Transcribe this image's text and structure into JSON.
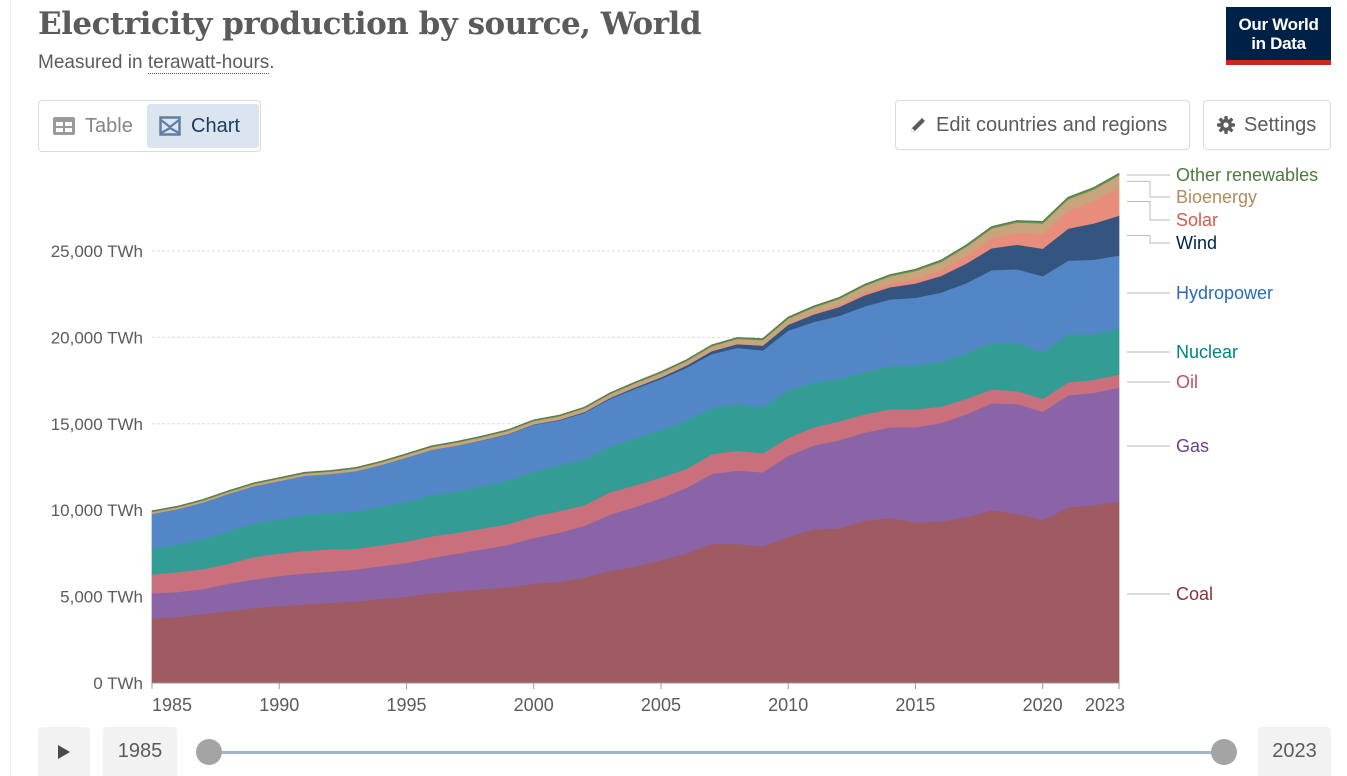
{
  "header": {
    "title": "Electricity production by source, World",
    "subtitle_prefix": "Measured in ",
    "subtitle_link": "terawatt-hours",
    "subtitle_suffix": ".",
    "logo_line1": "Our World",
    "logo_line2": "in Data"
  },
  "tabs": [
    {
      "label": "Table",
      "icon": "table-icon",
      "active": false
    },
    {
      "label": "Chart",
      "icon": "chart-icon",
      "active": true
    }
  ],
  "toolbar": {
    "edit_label": "Edit countries and regions",
    "edit_icon": "pencil-icon",
    "settings_label": "Settings",
    "settings_icon": "gear-icon"
  },
  "timeline": {
    "play_icon": "play-icon",
    "start_year": "1985",
    "end_year": "2023",
    "range_start_fraction": 0,
    "range_end_fraction": 1
  },
  "colors": {
    "brand_navy": "#002147",
    "brand_red": "#ce261e",
    "active_tab": "#dbe5f0",
    "slider_track": "#a2b6cc"
  },
  "chart_data": {
    "type": "area",
    "stacked": true,
    "title": "Electricity production by source, World",
    "subtitle": "Measured in terawatt-hours.",
    "xlabel": "",
    "ylabel": "",
    "unit": "TWh",
    "ylim": [
      0,
      29500
    ],
    "xlim": [
      1985,
      2023
    ],
    "grid": "horizontal-dashed",
    "legend_position": "right (inline labels)",
    "x_ticks": [
      "1985",
      "1990",
      "1995",
      "2000",
      "2005",
      "2010",
      "2015",
      "2020",
      "2023"
    ],
    "x_tick_values": [
      1985,
      1990,
      1995,
      2000,
      2005,
      2010,
      2015,
      2020,
      2023
    ],
    "y_ticks": [
      "0 TWh",
      "5,000 TWh",
      "10,000 TWh",
      "15,000 TWh",
      "20,000 TWh",
      "25,000 TWh"
    ],
    "y_tick_values": [
      0,
      5000,
      10000,
      15000,
      20000,
      25000
    ],
    "x": [
      1985,
      1986,
      1987,
      1988,
      1989,
      1990,
      1991,
      1992,
      1993,
      1994,
      1995,
      1996,
      1997,
      1998,
      1999,
      2000,
      2001,
      2002,
      2003,
      2004,
      2005,
      2006,
      2007,
      2008,
      2009,
      2010,
      2011,
      2012,
      2013,
      2014,
      2015,
      2016,
      2017,
      2018,
      2019,
      2020,
      2021,
      2022,
      2023
    ],
    "series": [
      {
        "name": "Coal",
        "color": "#a05a62",
        "label_color": "#883039",
        "values": [
          3750,
          3820,
          4000,
          4150,
          4350,
          4450,
          4550,
          4650,
          4720,
          4870,
          5000,
          5200,
          5300,
          5450,
          5550,
          5750,
          5850,
          6100,
          6500,
          6750,
          7100,
          7500,
          8050,
          8050,
          7900,
          8450,
          8900,
          8950,
          9400,
          9550,
          9300,
          9350,
          9600,
          10000,
          9800,
          9450,
          10150,
          10300,
          10500
        ]
      },
      {
        "name": "Gas",
        "color": "#8a64a6",
        "label_color": "#6d3e91",
        "values": [
          1450,
          1450,
          1450,
          1600,
          1650,
          1750,
          1800,
          1800,
          1850,
          1900,
          1950,
          2050,
          2200,
          2300,
          2450,
          2650,
          2850,
          3000,
          3250,
          3450,
          3600,
          3800,
          4050,
          4250,
          4300,
          4700,
          4850,
          5100,
          5100,
          5250,
          5500,
          5700,
          5950,
          6200,
          6350,
          6250,
          6500,
          6500,
          6600
        ]
      },
      {
        "name": "Oil",
        "color": "#c9707c",
        "label_color": "#c15065",
        "values": [
          1100,
          1150,
          1150,
          1150,
          1300,
          1300,
          1300,
          1300,
          1200,
          1200,
          1250,
          1250,
          1200,
          1200,
          1200,
          1250,
          1250,
          1200,
          1300,
          1250,
          1200,
          1100,
          1150,
          1150,
          1100,
          1050,
          1050,
          1100,
          1050,
          1050,
          1050,
          950,
          900,
          800,
          750,
          750,
          750,
          750,
          750
        ]
      },
      {
        "name": "Nuclear",
        "color": "#339c94",
        "label_color": "#00847e",
        "values": [
          1500,
          1600,
          1750,
          1900,
          1950,
          2000,
          2100,
          2100,
          2150,
          2250,
          2300,
          2400,
          2400,
          2450,
          2550,
          2600,
          2650,
          2650,
          2650,
          2750,
          2750,
          2800,
          2700,
          2700,
          2650,
          2750,
          2600,
          2450,
          2450,
          2500,
          2550,
          2600,
          2650,
          2700,
          2800,
          2700,
          2800,
          2650,
          2700
        ]
      },
      {
        "name": "Hydropower",
        "color": "#5386c6",
        "label_color": "#286bbb",
        "values": [
          2000,
          2050,
          2100,
          2150,
          2150,
          2200,
          2250,
          2250,
          2350,
          2400,
          2550,
          2600,
          2650,
          2650,
          2650,
          2700,
          2600,
          2700,
          2750,
          2850,
          2950,
          3050,
          3100,
          3250,
          3300,
          3450,
          3500,
          3650,
          3800,
          3850,
          3900,
          4000,
          4050,
          4200,
          4250,
          4400,
          4250,
          4300,
          4200
        ]
      },
      {
        "name": "Wind",
        "color": "#335580",
        "label_color": "#002147",
        "values": [
          0,
          0,
          0,
          0,
          0,
          0,
          0,
          0,
          0,
          5,
          5,
          5,
          10,
          20,
          25,
          30,
          40,
          50,
          60,
          80,
          100,
          130,
          170,
          220,
          280,
          340,
          430,
          520,
          640,
          710,
          830,
          960,
          1130,
          1270,
          1420,
          1590,
          1850,
          2100,
          2300
        ]
      },
      {
        "name": "Solar",
        "color": "#e88c7b",
        "label_color": "#d9594c",
        "values": [
          0,
          0,
          0,
          0,
          0,
          0,
          0,
          0,
          0,
          0,
          0,
          0,
          0,
          0,
          0,
          1,
          1,
          2,
          2,
          3,
          4,
          6,
          7,
          12,
          20,
          32,
          63,
          100,
          140,
          200,
          260,
          330,
          450,
          580,
          700,
          860,
          1050,
          1300,
          1630
        ]
      },
      {
        "name": "Bioenergy",
        "color": "#c8a47c",
        "label_color": "#b7885c",
        "values": [
          110,
          110,
          115,
          120,
          125,
          130,
          135,
          140,
          145,
          150,
          160,
          165,
          170,
          175,
          180,
          190,
          200,
          210,
          220,
          230,
          240,
          250,
          270,
          290,
          300,
          320,
          340,
          360,
          400,
          430,
          460,
          480,
          520,
          560,
          590,
          600,
          650,
          660,
          700
        ]
      },
      {
        "name": "Other renewables",
        "color": "#5a9950",
        "label_color": "#4c7a3e",
        "values": [
          40,
          40,
          45,
          45,
          45,
          45,
          45,
          45,
          45,
          45,
          45,
          45,
          45,
          45,
          45,
          45,
          45,
          45,
          50,
          50,
          55,
          55,
          60,
          60,
          65,
          70,
          70,
          70,
          75,
          80,
          85,
          90,
          90,
          95,
          95,
          100,
          100,
          100,
          105
        ]
      }
    ]
  }
}
